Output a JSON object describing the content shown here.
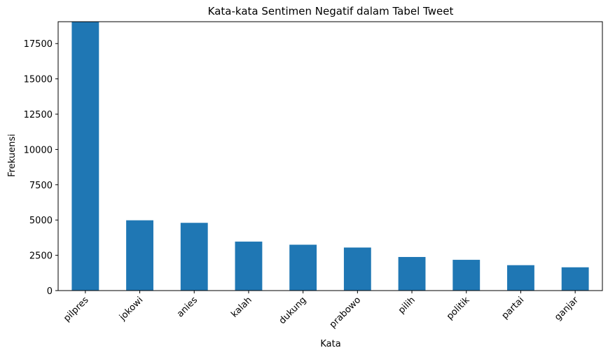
{
  "chart_data": {
    "type": "bar",
    "title": "Kata-kata Sentimen Negatif dalam Tabel Tweet",
    "xlabel": "Kata",
    "ylabel": "Frekuensi",
    "categories": [
      "pilpres",
      "jokowi",
      "anies",
      "kalah",
      "dukung",
      "prabowo",
      "pilih",
      "politik",
      "partai",
      "ganjar"
    ],
    "values": [
      19050,
      4980,
      4800,
      3470,
      3250,
      3050,
      2380,
      2180,
      1800,
      1650
    ],
    "ylim": [
      0,
      19050
    ],
    "yticks": [
      0,
      2500,
      5000,
      7500,
      10000,
      12500,
      15000,
      17500
    ],
    "ytick_labels": [
      "0",
      "2500",
      "5000",
      "7500",
      "10000",
      "12500",
      "15000",
      "17500"
    ],
    "bar_color": "#1f77b4",
    "grid": false,
    "legend": "none",
    "xtick_rotation": 45
  }
}
